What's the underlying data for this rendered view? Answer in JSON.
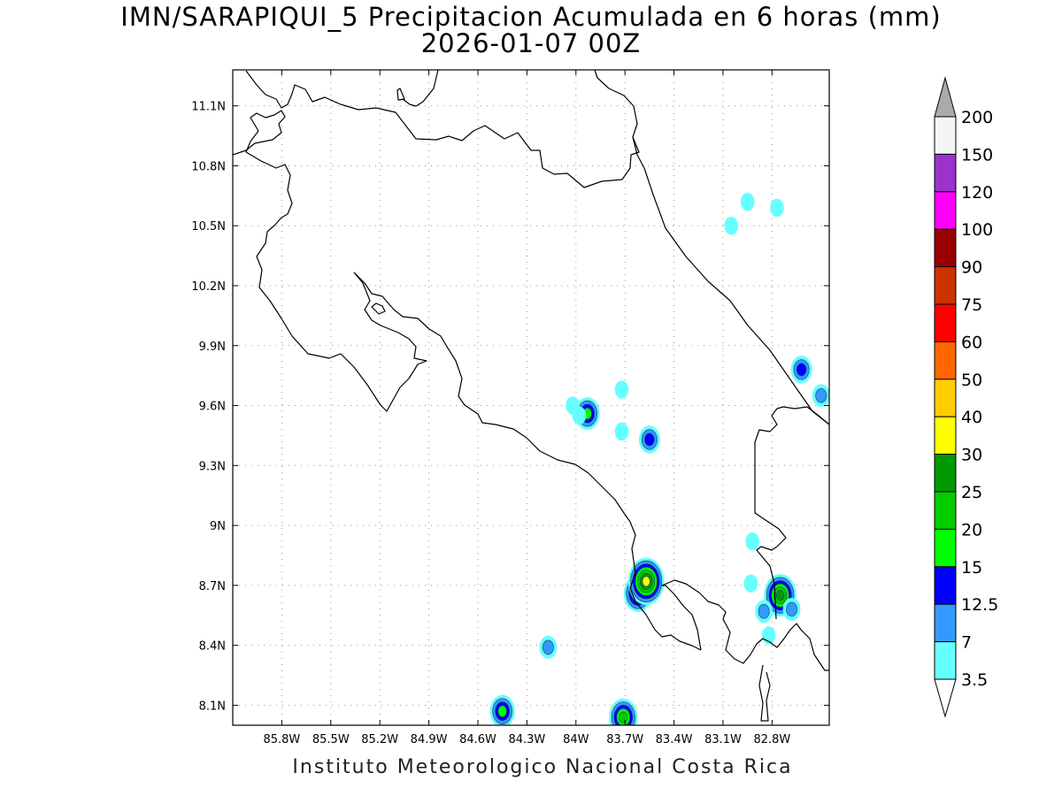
{
  "title": {
    "line1": "IMN/SARAPIQUI_5 Precipitacion Acumulada en 6 horas (mm)",
    "line2": "2026-01-07 00Z"
  },
  "footer": "Instituto Meteorologico Nacional Costa Rica",
  "chart_data": {
    "type": "map",
    "variable": "Precipitacion Acumulada en 6 horas (mm)",
    "xlim": [
      -86.1,
      -82.45
    ],
    "ylim": [
      8.0,
      11.28
    ],
    "x_ticks": [
      "85.8W",
      "85.5W",
      "85.2W",
      "84.9W",
      "84.6W",
      "84.3W",
      "84W",
      "83.7W",
      "83.4W",
      "83.1W",
      "82.8W"
    ],
    "x_tick_values": [
      -85.8,
      -85.5,
      -85.2,
      -84.9,
      -84.6,
      -84.3,
      -84.0,
      -83.7,
      -83.4,
      -83.1,
      -82.8
    ],
    "y_ticks": [
      "8.1N",
      "8.4N",
      "8.7N",
      "9N",
      "9.3N",
      "9.6N",
      "9.9N",
      "10.2N",
      "10.5N",
      "10.8N",
      "11.1N"
    ],
    "y_tick_values": [
      8.1,
      8.4,
      8.7,
      9.0,
      9.3,
      9.6,
      9.9,
      10.2,
      10.5,
      10.8,
      11.1
    ],
    "grid": true,
    "colorbar": {
      "labels": [
        "3.5",
        "7",
        "12.5",
        "15",
        "20",
        "25",
        "30",
        "40",
        "50",
        "60",
        "75",
        "90",
        "100",
        "120",
        "150",
        "200"
      ],
      "colors": [
        "#66ffff",
        "#3399ff",
        "#0000ff",
        "#00ff00",
        "#00cc00",
        "#009900",
        "#ffff00",
        "#ffcc00",
        "#ff6600",
        "#ff0000",
        "#cc3300",
        "#990000",
        "#ff00ff",
        "#9933cc",
        "#f5f5f5"
      ],
      "low_triangle_color": "#ffffff",
      "high_triangle_color": "#aaaaaa"
    },
    "precip_areas": [
      {
        "lon": -83.05,
        "lat": 10.5,
        "max_mm": 3.5
      },
      {
        "lon": -82.95,
        "lat": 10.62,
        "max_mm": 3.5
      },
      {
        "lon": -82.77,
        "lat": 10.59,
        "max_mm": 3.5
      },
      {
        "lon": -82.62,
        "lat": 9.78,
        "max_mm": 12.5
      },
      {
        "lon": -82.5,
        "lat": 9.65,
        "max_mm": 7
      },
      {
        "lon": -83.93,
        "lat": 9.56,
        "max_mm": 15
      },
      {
        "lon": -83.55,
        "lat": 9.43,
        "max_mm": 12.5
      },
      {
        "lon": -84.02,
        "lat": 9.6,
        "max_mm": 3.5
      },
      {
        "lon": -83.98,
        "lat": 9.55,
        "max_mm": 3.5
      },
      {
        "lon": -83.72,
        "lat": 9.68,
        "max_mm": 3.5
      },
      {
        "lon": -83.72,
        "lat": 9.47,
        "max_mm": 3.5
      },
      {
        "lon": -83.62,
        "lat": 8.66,
        "max_mm": 20
      },
      {
        "lon": -83.57,
        "lat": 8.72,
        "max_mm": 30
      },
      {
        "lon": -82.75,
        "lat": 8.65,
        "max_mm": 25
      },
      {
        "lon": -82.68,
        "lat": 8.58,
        "max_mm": 7
      },
      {
        "lon": -82.85,
        "lat": 8.57,
        "max_mm": 7
      },
      {
        "lon": -82.92,
        "lat": 8.92,
        "max_mm": 3.5
      },
      {
        "lon": -82.93,
        "lat": 8.71,
        "max_mm": 3.5
      },
      {
        "lon": -82.82,
        "lat": 8.45,
        "max_mm": 3.5
      },
      {
        "lon": -84.17,
        "lat": 8.39,
        "max_mm": 7
      },
      {
        "lon": -84.45,
        "lat": 8.07,
        "max_mm": 15
      },
      {
        "lon": -83.71,
        "lat": 8.04,
        "max_mm": 20
      }
    ]
  }
}
